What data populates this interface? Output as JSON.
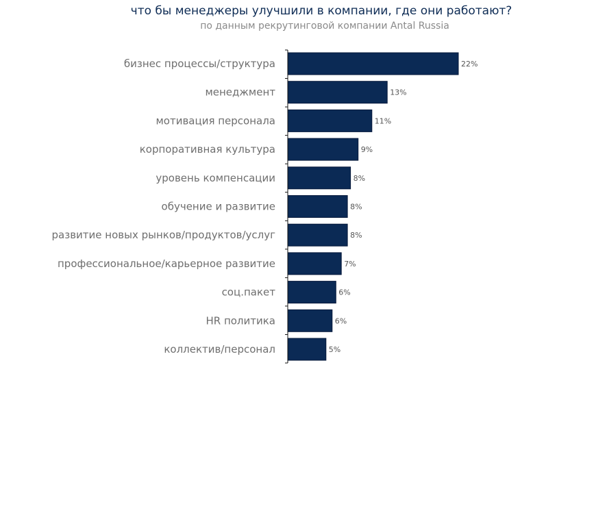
{
  "chart_data": {
    "type": "bar",
    "orientation": "horizontal",
    "title": "что бы менеджеры улучшили в компании, где они работают?",
    "subtitle": "по данным рекрутинговой компании Antal Russia",
    "categories": [
      "бизнес процессы/структура",
      "менеджмент",
      "мотивация персонала",
      "корпоративная культура",
      "уровень компенсации",
      "обучение и развитие",
      "развитие новых рынков/продуктов/услуг",
      "профессиональное/карьерное развитие",
      "соц.пакет",
      "HR политика",
      "коллектив/персонал"
    ],
    "values": [
      22,
      13,
      11,
      9,
      8,
      8,
      8,
      7,
      6,
      6,
      5
    ],
    "value_labels": [
      "22%",
      "13%",
      "11%",
      "9%",
      "8%",
      "8%",
      "8%",
      "7%",
      "6%",
      "6%",
      "5%"
    ],
    "bar_lengths": [
      22.3,
      13,
      11,
      9.2,
      8.2,
      7.8,
      7.8,
      7,
      6.3,
      5.8,
      5
    ],
    "unit": "%",
    "xlim": [
      0,
      22.3
    ],
    "grid": false,
    "legend": "none",
    "bar_color": "#0b2a55",
    "axis_color": "#111111"
  }
}
